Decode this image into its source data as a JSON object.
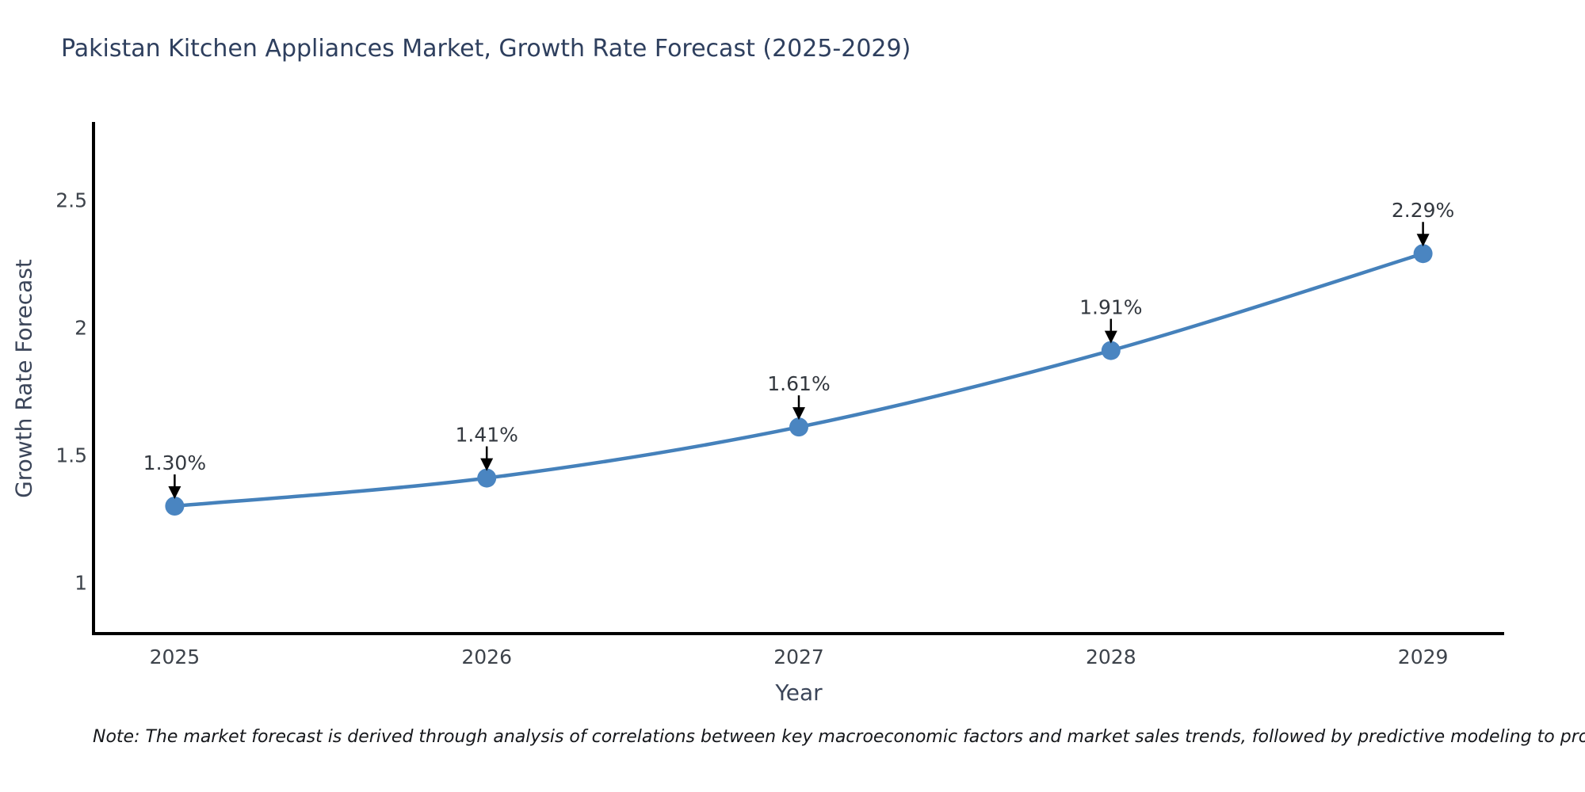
{
  "chart_data": {
    "type": "line",
    "title": "Pakistan Kitchen Appliances Market, Growth Rate Forecast (2025-2029)",
    "xlabel": "Year",
    "ylabel": "Growth Rate Forecast",
    "x": [
      2025,
      2026,
      2027,
      2028,
      2029
    ],
    "y": [
      1.3,
      1.41,
      1.61,
      1.91,
      2.29
    ],
    "point_labels": [
      "1.30%",
      "1.41%",
      "1.61%",
      "1.91%",
      "2.29%"
    ],
    "xticks": [
      2025,
      2026,
      2027,
      2028,
      2029
    ],
    "xtick_labels": [
      "2025",
      "2026",
      "2027",
      "2028",
      "2029"
    ],
    "yticks": [
      1,
      1.5,
      2,
      2.5
    ],
    "ytick_labels": [
      "1",
      "1.5",
      "2",
      "2.5"
    ],
    "xlim": [
      2024.74,
      2029.26
    ],
    "ylim": [
      0.8,
      2.8
    ],
    "grid": false,
    "legend": null,
    "line_color": "#4581bb",
    "marker_color": "#4a85c1",
    "annotation_arrow_color": "#000000",
    "annotation_text_color": "#33383f",
    "axis_spine_color": "#000000",
    "tick_label_color": "#3d434b"
  },
  "note": "Note: The market forecast is derived through analysis of correlations between key macroeconomic factors and market sales trends, followed by predictive modeling to project future sales"
}
